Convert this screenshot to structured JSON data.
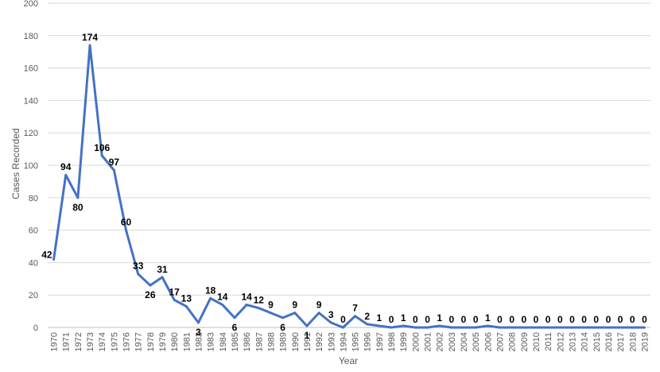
{
  "chart_data": {
    "type": "line",
    "title": "",
    "xlabel": "Year",
    "ylabel": "Cases Recorded",
    "ylim": [
      0,
      200
    ],
    "yticks": [
      0,
      20,
      40,
      60,
      80,
      100,
      120,
      140,
      160,
      180,
      200
    ],
    "grid": true,
    "legend": "none",
    "series": [
      {
        "color": "#4472C4",
        "x": [
          "1970",
          "1971",
          "1972",
          "1973",
          "1974",
          "1975",
          "1976",
          "1977",
          "1978",
          "1979",
          "1980",
          "1981",
          "1982",
          "1983",
          "1984",
          "1985",
          "1986",
          "1987",
          "1988",
          "1989",
          "1990",
          "1991",
          "1992",
          "1993",
          "1994",
          "1995",
          "1996",
          "1997",
          "1998",
          "1999",
          "2000",
          "2001",
          "2002",
          "2003",
          "2004",
          "2005",
          "2006",
          "2007",
          "2008",
          "2009",
          "2010",
          "2011",
          "2012",
          "2013",
          "2014",
          "2015",
          "2016",
          "2017",
          "2018",
          "2019"
        ],
        "values": [
          42,
          94,
          80,
          174,
          106,
          97,
          60,
          33,
          26,
          31,
          17,
          13,
          3,
          18,
          14,
          6,
          14,
          12,
          9,
          6,
          9,
          1,
          9,
          3,
          0,
          7,
          2,
          1,
          0,
          1,
          0,
          0,
          1,
          0,
          0,
          0,
          1,
          0,
          0,
          0,
          0,
          0,
          0,
          0,
          0,
          0,
          0,
          0,
          0,
          0
        ],
        "labels": [
          "42",
          "94",
          "80",
          "174",
          "106",
          "97",
          "60",
          "33",
          "26",
          "31",
          "17",
          "13",
          "3",
          "18",
          "14",
          "6",
          "14",
          "12",
          "9",
          "6",
          "9",
          "1",
          "9",
          "3",
          "0",
          "7",
          "2",
          "1",
          "0",
          "1",
          "0",
          "0",
          "1",
          "0",
          "0",
          "0",
          "1",
          "0",
          "0",
          "0",
          "0",
          "0",
          "0",
          "0",
          "0",
          "0",
          "0",
          "0",
          "0",
          "0"
        ]
      }
    ]
  }
}
